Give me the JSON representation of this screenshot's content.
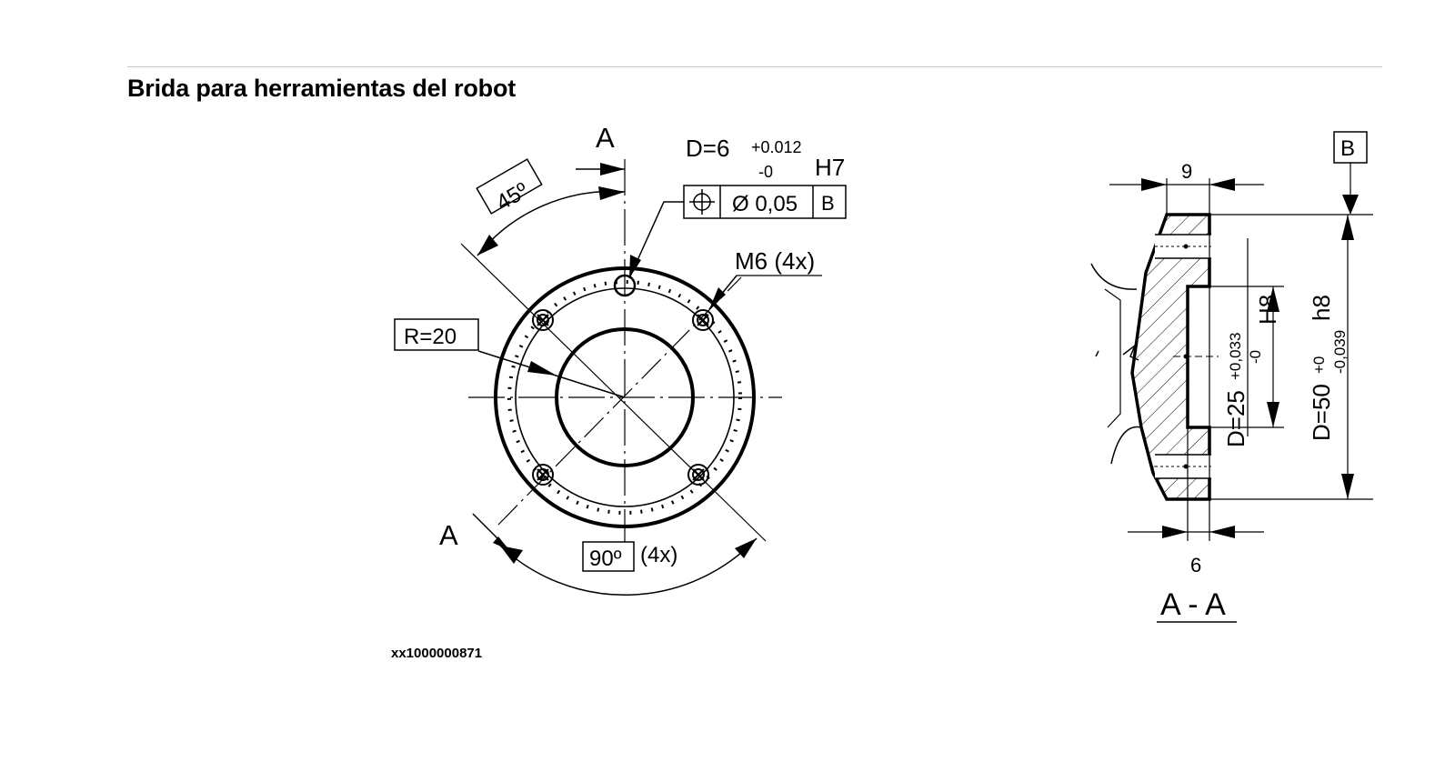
{
  "title": "Brida para herramientas del robot",
  "figure_id": "xx1000000871",
  "front_view": {
    "section_mark_top": "A",
    "section_mark_bottom": "A",
    "angle_top": "45º",
    "radius": "R=20",
    "hole_diameter": "D=6",
    "hole_tol_upper": "+0.012",
    "hole_tol_lower": "-0",
    "hole_fit": "H7",
    "position_tolerance": "Ø 0,05",
    "datum_ref": "B",
    "thread": "M6 (4x)",
    "angle_bottom": "90º",
    "angle_bottom_count": "(4x)"
  },
  "section_view": {
    "datum": "B",
    "width_top": "9",
    "width_bottom": "6",
    "inner_diameter": "D=25",
    "inner_tol_upper": "+0,033",
    "inner_tol_lower": "-0",
    "inner_fit": "H8",
    "outer_diameter": "D=50",
    "outer_tol_upper": "+0",
    "outer_tol_lower": "-0,039",
    "outer_fit": "h8",
    "caption": "A - A"
  }
}
